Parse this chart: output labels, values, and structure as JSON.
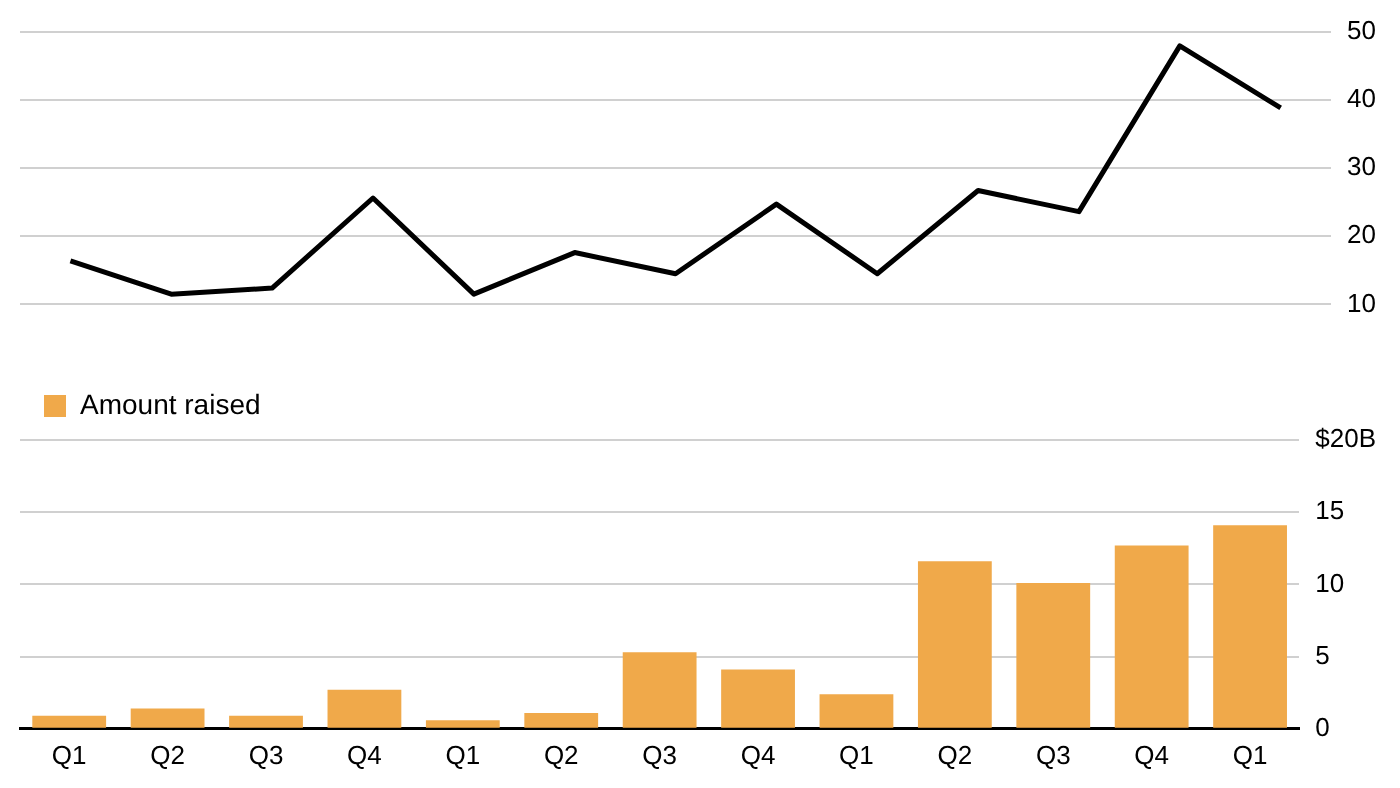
{
  "chart_data": [
    {
      "type": "line",
      "categories": [
        null,
        null,
        null,
        null,
        null,
        null,
        null,
        null,
        null,
        null,
        null,
        null,
        null
      ],
      "tick_labels": "y",
      "color": "#000000",
      "values": [
        16.4,
        11.5,
        12.4,
        25.6,
        11.5,
        17.6,
        14.5,
        24.7,
        14.5,
        26.7,
        23.6,
        47.9,
        38.8
      ],
      "ylim": [
        10,
        50
      ],
      "yticks": [
        10,
        20,
        30,
        40,
        50
      ],
      "grid": "y",
      "marker": "none"
    },
    {
      "type": "bar",
      "categories": [
        "Q1",
        "Q2",
        "Q3",
        "Q4",
        "Q1",
        "Q2",
        "Q3",
        "Q4",
        "Q1",
        "Q2",
        "Q3",
        "Q4",
        "Q1"
      ],
      "series": [
        {
          "name": "Amount raised",
          "color": "#f0a94a",
          "values": [
            0.9,
            1.4,
            0.9,
            2.7,
            0.6,
            1.1,
            5.3,
            4.1,
            2.4,
            11.6,
            10.1,
            12.7,
            14.1
          ]
        }
      ],
      "ylim": [
        0,
        20
      ],
      "yticks": [
        0,
        5,
        10,
        15,
        {
          "value": 20,
          "label": "$20B"
        }
      ],
      "grid": "y",
      "legend": "top left"
    }
  ]
}
